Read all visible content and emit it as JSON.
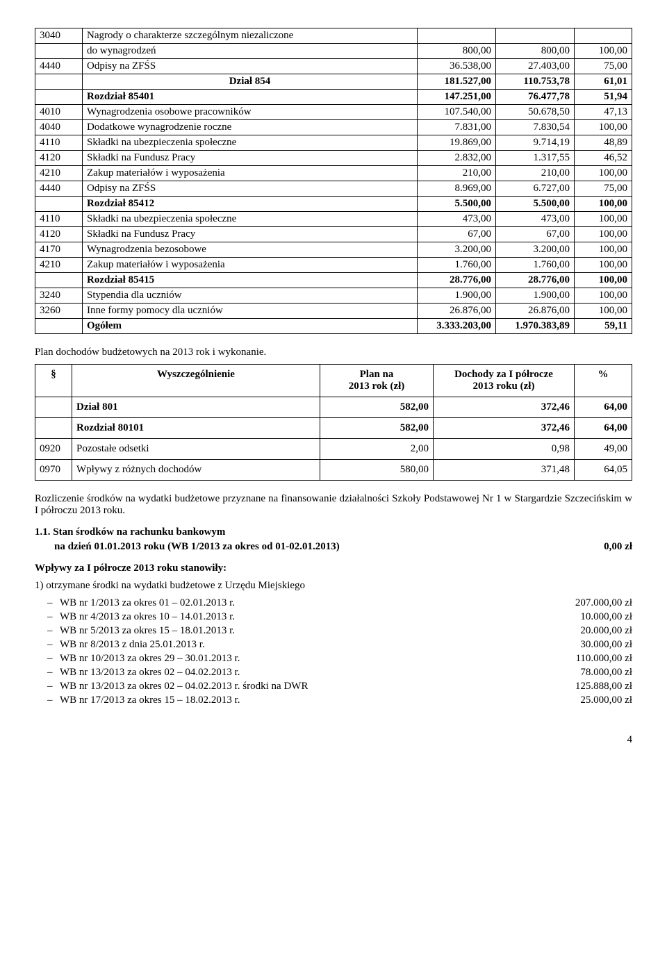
{
  "table1": {
    "rows": [
      {
        "code": "3040",
        "name": "Nagrody o charakterze szczególnym niezaliczone",
        "v1": "",
        "v2": "",
        "v3": "",
        "bold": false,
        "sub": false
      },
      {
        "code": "",
        "name": "do wynagrodzeń",
        "v1": "800,00",
        "v2": "800,00",
        "v3": "100,00",
        "bold": false,
        "sub": true
      },
      {
        "code": "4440",
        "name": "Odpisy na ZFŚS",
        "v1": "36.538,00",
        "v2": "27.403,00",
        "v3": "75,00",
        "bold": false,
        "sub": false
      },
      {
        "code": "",
        "name": "Dział 854",
        "v1": "181.527,00",
        "v2": "110.753,78",
        "v3": "61,01",
        "bold": true,
        "center": true
      },
      {
        "code": "",
        "name": "Rozdział 85401",
        "v1": "147.251,00",
        "v2": "76.477,78",
        "v3": "51,94",
        "bold": true
      },
      {
        "code": "4010",
        "name": "Wynagrodzenia osobowe pracowników",
        "v1": "107.540,00",
        "v2": "50.678,50",
        "v3": "47,13",
        "bold": false
      },
      {
        "code": "4040",
        "name": "Dodatkowe wynagrodzenie roczne",
        "v1": "7.831,00",
        "v2": "7.830,54",
        "v3": "100,00",
        "bold": false
      },
      {
        "code": "4110",
        "name": "Składki na ubezpieczenia społeczne",
        "v1": "19.869,00",
        "v2": "9.714,19",
        "v3": "48,89",
        "bold": false
      },
      {
        "code": "4120",
        "name": "Składki na Fundusz Pracy",
        "v1": "2.832,00",
        "v2": "1.317,55",
        "v3": "46,52",
        "bold": false
      },
      {
        "code": "4210",
        "name": "Zakup materiałów i wyposażenia",
        "v1": "210,00",
        "v2": "210,00",
        "v3": "100,00",
        "bold": false
      },
      {
        "code": "4440",
        "name": "Odpisy na ZFŚS",
        "v1": "8.969,00",
        "v2": "6.727,00",
        "v3": "75,00",
        "bold": false
      },
      {
        "code": "",
        "name": "Rozdział 85412",
        "v1": "5.500,00",
        "v2": "5.500,00",
        "v3": "100,00",
        "bold": true
      },
      {
        "code": "4110",
        "name": "Składki na ubezpieczenia społeczne",
        "v1": "473,00",
        "v2": "473,00",
        "v3": "100,00",
        "bold": false
      },
      {
        "code": "4120",
        "name": "Składki na Fundusz Pracy",
        "v1": "67,00",
        "v2": "67,00",
        "v3": "100,00",
        "bold": false
      },
      {
        "code": "4170",
        "name": "Wynagrodzenia bezosobowe",
        "v1": "3.200,00",
        "v2": "3.200,00",
        "v3": "100,00",
        "bold": false
      },
      {
        "code": "4210",
        "name": "Zakup materiałów i wyposażenia",
        "v1": "1.760,00",
        "v2": "1.760,00",
        "v3": "100,00",
        "bold": false
      },
      {
        "code": "",
        "name": "Rozdział 85415",
        "v1": "28.776,00",
        "v2": "28.776,00",
        "v3": "100,00",
        "bold": true
      },
      {
        "code": "3240",
        "name": "Stypendia dla uczniów",
        "v1": "1.900,00",
        "v2": "1.900,00",
        "v3": "100,00",
        "bold": false
      },
      {
        "code": "3260",
        "name": "Inne formy pomocy dla uczniów",
        "v1": "26.876,00",
        "v2": "26.876,00",
        "v3": "100,00",
        "bold": false
      },
      {
        "code": "",
        "name": "Ogółem",
        "v1": "3.333.203,00",
        "v2": "1.970.383,89",
        "v3": "59,11",
        "bold": true
      }
    ]
  },
  "para1": "Plan dochodów budżetowych na 2013 rok i wykonanie.",
  "table2": {
    "headers": {
      "c1": "§",
      "c2": "Wyszczególnienie",
      "c3": "Plan na\n2013  rok (zł)",
      "c4": "Dochody za I półrocze\n2013 roku (zł)",
      "c5": "%"
    },
    "rows": [
      {
        "c1": "",
        "c2": "Dział 801",
        "c3": "582,00",
        "c4": "372,46",
        "c5": "64,00",
        "bold": true
      },
      {
        "c1": "",
        "c2": "Rozdział 80101",
        "c3": "582,00",
        "c4": "372,46",
        "c5": "64,00",
        "bold": true
      },
      {
        "c1": "0920",
        "c2": "Pozostałe odsetki",
        "c3": "2,00",
        "c4": "0,98",
        "c5": "49,00",
        "bold": false
      },
      {
        "c1": "0970",
        "c2": "Wpływy z różnych dochodów",
        "c3": "580,00",
        "c4": "371,48",
        "c5": "64,05",
        "bold": false
      }
    ]
  },
  "para2": "Rozliczenie środków na wydatki budżetowe przyznane na finansowanie działalności Szkoły Podstawowej Nr 1 w Stargardzie Szczecińskim w I półroczu 2013 roku.",
  "sec11": {
    "heading": "1.1. Stan środków na rachunku bankowym",
    "line2": "na dzień 01.01.2013 roku (WB 1/2013 za okres od 01-02.01.2013)",
    "amount": "0,00 zł"
  },
  "heading2": "Wpływy za I półrocze 2013 roku stanowiły:",
  "item1": "1) otrzymane środki na wydatki budżetowe z Urzędu Miejskiego",
  "wbList": [
    {
      "t": "WB nr 1/2013 za okres 01 – 02.01.2013 r.",
      "a": "207.000,00 zł"
    },
    {
      "t": "WB nr 4/2013 za okres 10 – 14.01.2013 r.",
      "a": "10.000,00 zł"
    },
    {
      "t": "WB nr 5/2013 za okres 15 – 18.01.2013 r.",
      "a": "20.000,00 zł"
    },
    {
      "t": "WB nr 8/2013 z dnia 25.01.2013 r.",
      "a": "30.000,00 zł"
    },
    {
      "t": "WB nr 10/2013 za okres 29 – 30.01.2013 r.",
      "a": "110.000,00 zł"
    },
    {
      "t": "WB nr 13/2013 za okres 02 – 04.02.2013 r.",
      "a": "78.000,00 zł"
    },
    {
      "t": "WB nr 13/2013 za okres 02 – 04.02.2013 r. środki na DWR",
      "a": "125.888,00 zł"
    },
    {
      "t": "WB nr 17/2013 za okres 15 – 18.02.2013 r.",
      "a": "25.000,00 zł"
    }
  ],
  "pageNum": "4"
}
